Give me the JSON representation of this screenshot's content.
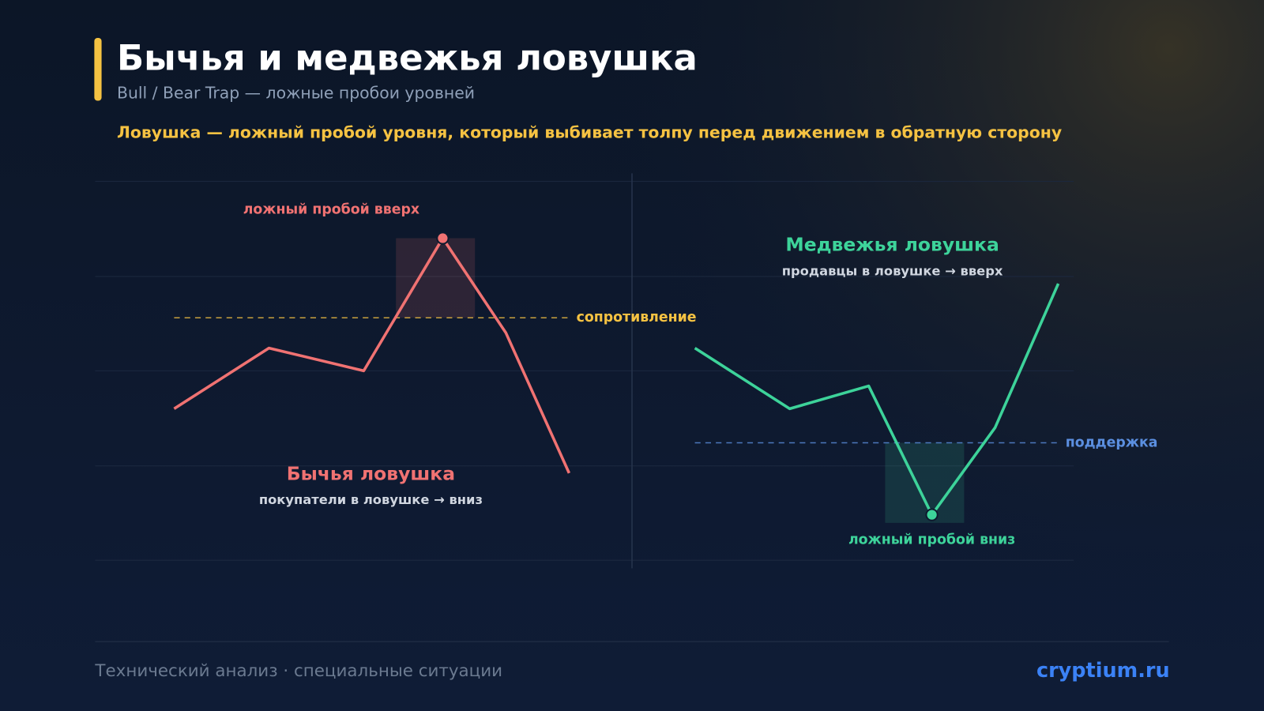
{
  "header": {
    "title": "Бычья и медвежья ловушка",
    "subtitle": "Bull / Bear Trap — ложные пробои уровней",
    "tagline": "Ловушка — ложный пробой уровня, который выбивает толпу перед движением в обратную сторону"
  },
  "chart_data": [
    {
      "type": "line",
      "title": "Бычья ловушка",
      "subtitle": "покупатели в ловушке → вниз",
      "annotation": "ложный пробой вверх",
      "color": "#f07272",
      "x": [
        0,
        3,
        6,
        8.5,
        10.5,
        12.5
      ],
      "values": [
        40,
        56,
        50,
        85,
        60,
        23
      ],
      "xlim": [
        0,
        12.5
      ],
      "ylim": [
        0,
        100
      ],
      "trap": "max",
      "level": {
        "label": "сопротивление",
        "value": 64,
        "color": "#f5c242"
      }
    },
    {
      "type": "line",
      "title": "Медвежья ловушка",
      "subtitle": "продавцы в ловушке → вверх",
      "annotation": "ложный пробой вниз",
      "color": "#3dd39a",
      "x": [
        0,
        3,
        5.5,
        7.5,
        9.5,
        11.5
      ],
      "values": [
        56,
        40,
        46,
        12,
        35,
        73
      ],
      "xlim": [
        0,
        12.5
      ],
      "ylim": [
        0,
        100
      ],
      "trap": "min",
      "level": {
        "label": "поддержка",
        "value": 31,
        "color": "#5b8fe0"
      }
    }
  ],
  "footer": {
    "left": "Технический анализ · специальные ситуации",
    "right": "cryptium.ru"
  }
}
